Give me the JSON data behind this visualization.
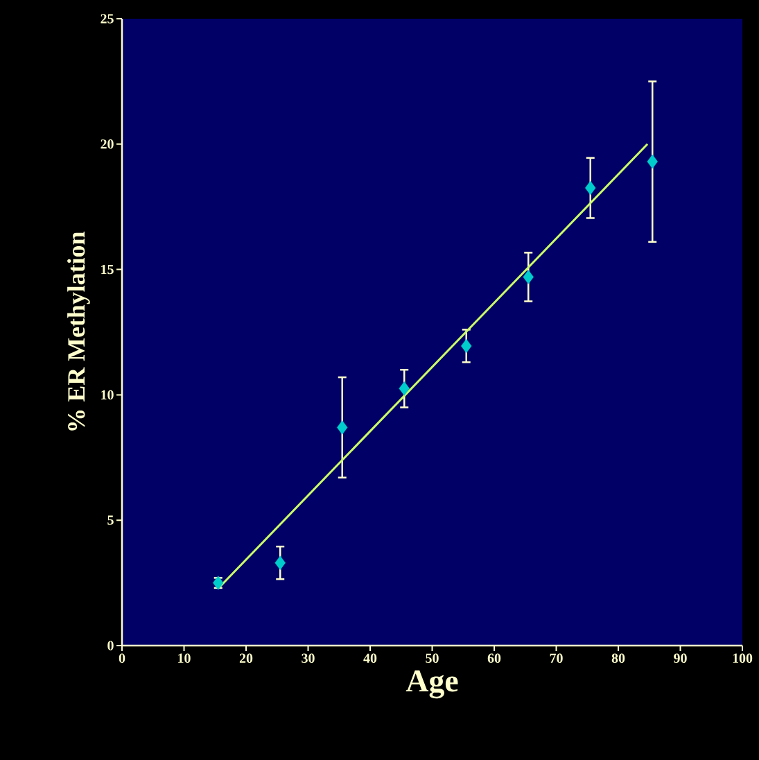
{
  "chart_data": {
    "type": "scatter",
    "xlabel": "Age",
    "ylabel": "% ER Methylation",
    "xlim": [
      0,
      100
    ],
    "ylim": [
      0,
      25
    ],
    "xticks": [
      0,
      10,
      20,
      30,
      40,
      50,
      60,
      70,
      80,
      90,
      100
    ],
    "yticks": [
      0,
      5,
      10,
      15,
      20,
      25
    ],
    "series": [
      {
        "color": "#00cccc",
        "marker": "diamond",
        "x": [
          15.5,
          25.5,
          35.5,
          45.5,
          55.5,
          65.5,
          75.5,
          85.5
        ],
        "values": [
          2.5,
          3.3,
          8.7,
          10.25,
          11.95,
          14.7,
          18.25,
          19.3
        ],
        "errors": [
          0.2,
          0.65,
          2.0,
          0.75,
          0.65,
          0.97,
          1.2,
          3.2
        ]
      },
      {
        "type": "line",
        "color": "#ccff66",
        "line_style": "solid",
        "x": [
          15.6,
          84.7
        ],
        "values": [
          2.3,
          20.0
        ]
      }
    ]
  }
}
